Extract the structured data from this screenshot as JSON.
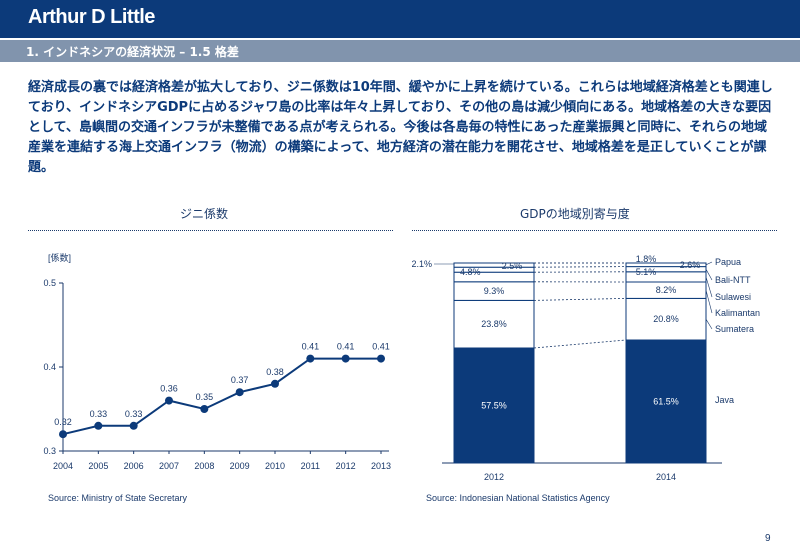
{
  "header": {
    "logo": "Arthur D Little",
    "section_title": "1. インドネシアの経済状況 – 1.5 格差"
  },
  "lead_text": "経済成長の裏では経済格差が拡大しており、ジニ係数は10年間、緩やかに上昇を続けている。これらは地域経済格差とも関連しており、インドネシアGDPに占めるジャワ島の比率は年々上昇しており、その他の島は減少傾向にある。地域格差の大きな要因として、島嶼間の交通インフラが未整備である点が考えられる。今後は各島毎の特性にあった産業振興と同時に、それらの地域産業を連結する海上交通インフラ（物流）の構築によって、地方経済の潜在能力を開花させ、地域格差を是正していくことが課題。",
  "page_number": "9",
  "colors": {
    "navy": "#0c3a7a",
    "section_bar": "#8194ad",
    "text": "#1b3a6b",
    "white": "#ffffff"
  },
  "chart_data": [
    {
      "type": "line",
      "title": "ジニ係数",
      "ylabel": "[係数]",
      "x": [
        "2004",
        "2005",
        "2006",
        "2007",
        "2008",
        "2009",
        "2010",
        "2011",
        "2012",
        "2013"
      ],
      "values": [
        0.32,
        0.33,
        0.33,
        0.36,
        0.35,
        0.37,
        0.38,
        0.41,
        0.41,
        0.41
      ],
      "data_labels": [
        "0.32",
        "0.33",
        "0.33",
        "0.36",
        "0.35",
        "0.37",
        "0.38",
        "0.41",
        "0.41",
        "0.41"
      ],
      "ylim": [
        0.3,
        0.5
      ],
      "yticks": [
        "0.3",
        "0.4",
        "0.5"
      ],
      "grid": false,
      "source": "Source: Ministry of State Secretary"
    },
    {
      "type": "bar",
      "stacked": true,
      "title": "GDPの地域別寄与度",
      "categories": [
        "2012",
        "2014"
      ],
      "series": [
        {
          "name": "Java",
          "values": [
            57.5,
            61.5
          ],
          "labels": [
            "57.5%",
            "61.5%"
          ]
        },
        {
          "name": "Sumatera",
          "values": [
            23.8,
            20.8
          ],
          "labels": [
            "23.8%",
            "20.8%"
          ]
        },
        {
          "name": "Kalimantan",
          "values": [
            9.3,
            8.2
          ],
          "labels": [
            "9.3%",
            "8.2%"
          ]
        },
        {
          "name": "Sulawesi",
          "values": [
            4.8,
            5.1
          ],
          "labels": [
            "4.8%",
            "5.1%"
          ]
        },
        {
          "name": "Bali-NTT",
          "values": [
            2.5,
            2.6
          ],
          "labels": [
            "2.5%",
            "2.6%"
          ]
        },
        {
          "name": "Papua",
          "values": [
            2.1,
            1.8
          ],
          "labels": [
            "2.1%",
            "1.8%"
          ]
        }
      ],
      "ylim": [
        0,
        100
      ],
      "legend_position": "right",
      "source": "Source: Indonesian National Statistics Agency"
    }
  ]
}
